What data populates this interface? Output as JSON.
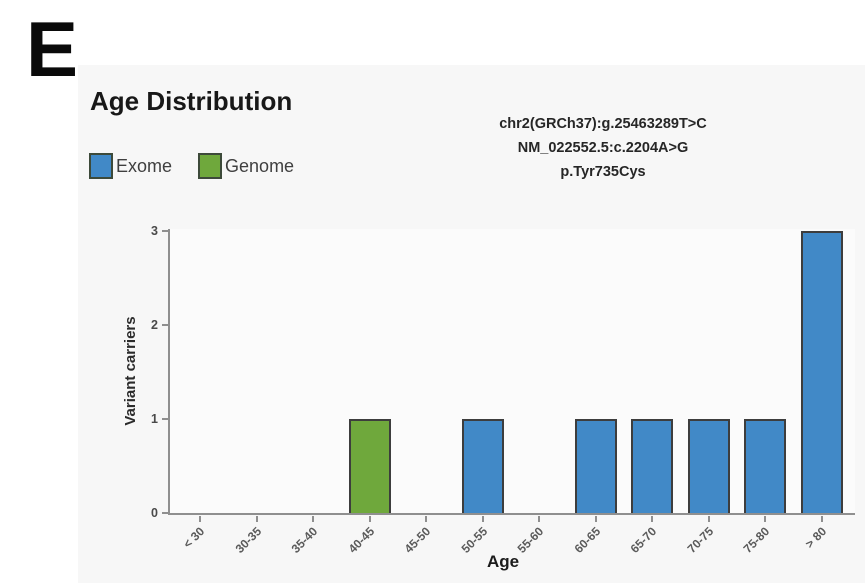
{
  "panel_label": "E",
  "chart_data": {
    "type": "bar",
    "title": "Age Distribution",
    "annotation_lines": [
      "chr2(GRCh37):g.25463289T>C",
      "NM_022552.5:c.2204A>G",
      "p.Tyr735Cys"
    ],
    "categories": [
      "< 30",
      "30-35",
      "35-40",
      "40-45",
      "45-50",
      "50-55",
      "55-60",
      "60-65",
      "65-70",
      "70-75",
      "75-80",
      "> 80"
    ],
    "series": [
      {
        "name": "Exome",
        "color": "#4189C7",
        "values": [
          0,
          0,
          0,
          0,
          0,
          1,
          0,
          1,
          1,
          1,
          1,
          3
        ]
      },
      {
        "name": "Genome",
        "color": "#6FA83C",
        "values": [
          0,
          0,
          0,
          1,
          0,
          0,
          0,
          0,
          0,
          0,
          0,
          0
        ]
      }
    ],
    "xlabel": "Age",
    "ylabel": "Variant carriers",
    "ylim": [
      0,
      3
    ],
    "yticks": [
      0,
      1,
      2,
      3
    ],
    "grid": false,
    "legend_position": "top-left",
    "bar_border_color": "#3d3d3d",
    "axis_color": "#8f8f8f",
    "panel_background": "#f7f7f7"
  }
}
